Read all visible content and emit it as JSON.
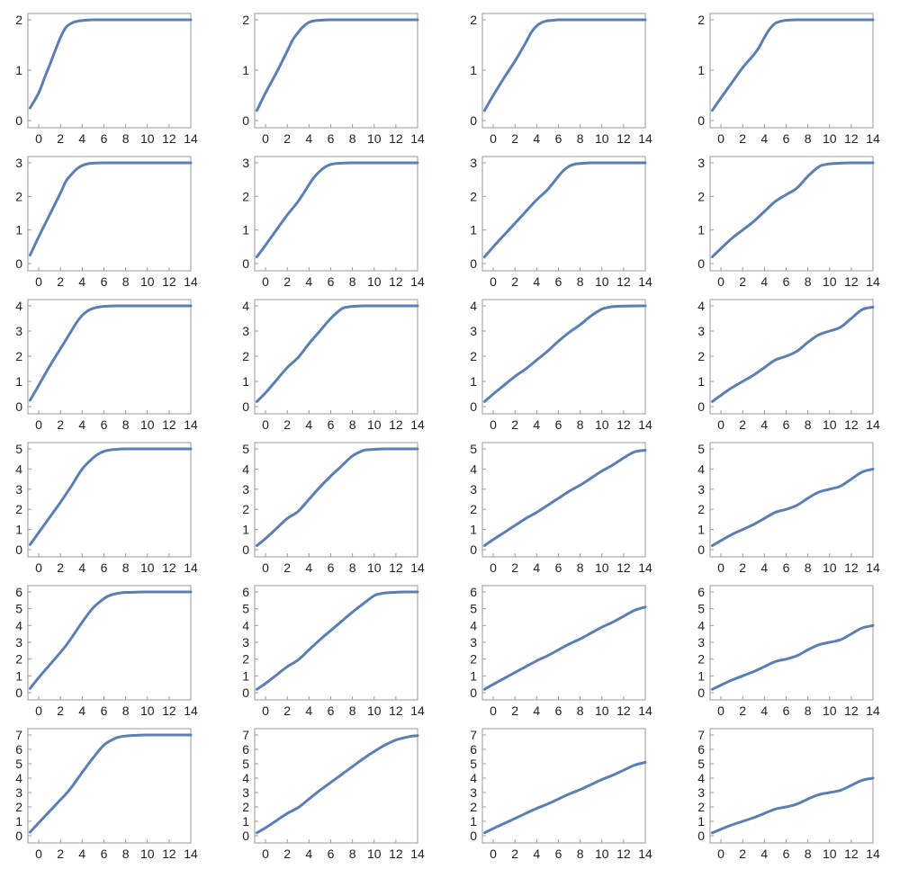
{
  "colors": {
    "series": "#5b7fb2",
    "frame": "#9a9a9a",
    "text": "#222222",
    "background": "#ffffff"
  },
  "chart_data": [
    {
      "type": "line",
      "xlim": [
        -1,
        14
      ],
      "ylim": [
        0,
        2
      ],
      "xticks": [
        0,
        2,
        4,
        6,
        8,
        10,
        12,
        14
      ],
      "yticks": [
        0,
        1,
        2
      ],
      "x": [
        -0.8,
        0,
        0.5,
        1,
        1.5,
        2,
        2.5,
        3,
        3.5,
        4,
        4.5,
        5,
        6,
        8,
        10,
        12,
        14
      ],
      "y": [
        0.25,
        0.55,
        0.83,
        1.1,
        1.38,
        1.65,
        1.85,
        1.93,
        1.97,
        1.985,
        1.995,
        2,
        2,
        2,
        2,
        2,
        2
      ]
    },
    {
      "type": "line",
      "xlim": [
        -1,
        14
      ],
      "ylim": [
        0,
        2
      ],
      "xticks": [
        0,
        2,
        4,
        6,
        8,
        10,
        12,
        14
      ],
      "yticks": [
        0,
        1,
        2
      ],
      "x": [
        -0.8,
        0,
        1,
        2,
        2.5,
        3,
        3.5,
        4,
        4.5,
        5,
        6,
        8,
        10,
        12,
        14
      ],
      "y": [
        0.2,
        0.55,
        0.95,
        1.38,
        1.6,
        1.75,
        1.87,
        1.95,
        1.98,
        1.99,
        2,
        2,
        2,
        2,
        2
      ]
    },
    {
      "type": "line",
      "xlim": [
        -1,
        14
      ],
      "ylim": [
        0,
        2
      ],
      "xticks": [
        0,
        2,
        4,
        6,
        8,
        10,
        12,
        14
      ],
      "yticks": [
        0,
        1,
        2
      ],
      "x": [
        -0.8,
        0,
        1,
        2,
        3,
        3.5,
        4,
        4.5,
        5,
        5.5,
        6,
        7,
        8,
        10,
        12,
        14
      ],
      "y": [
        0.2,
        0.5,
        0.85,
        1.18,
        1.55,
        1.75,
        1.88,
        1.95,
        1.98,
        1.99,
        2,
        2,
        2,
        2,
        2,
        2
      ]
    },
    {
      "type": "line",
      "xlim": [
        -1,
        14
      ],
      "ylim": [
        0,
        2
      ],
      "xticks": [
        0,
        2,
        4,
        6,
        8,
        10,
        12,
        14
      ],
      "yticks": [
        0,
        1,
        2
      ],
      "x": [
        -0.8,
        0,
        1,
        2,
        3,
        3.5,
        4,
        4.5,
        5,
        5.5,
        6,
        7,
        8,
        10,
        12,
        14
      ],
      "y": [
        0.2,
        0.45,
        0.75,
        1.05,
        1.3,
        1.45,
        1.65,
        1.82,
        1.93,
        1.97,
        1.99,
        2,
        2,
        2,
        2,
        2
      ]
    },
    {
      "type": "line",
      "xlim": [
        -1,
        14
      ],
      "ylim": [
        0,
        3
      ],
      "xticks": [
        0,
        2,
        4,
        6,
        8,
        10,
        12,
        14
      ],
      "yticks": [
        0,
        1,
        2,
        3
      ],
      "x": [
        -0.8,
        0,
        1,
        2,
        2.5,
        3,
        3.5,
        4,
        4.5,
        5,
        6,
        8,
        10,
        12,
        14
      ],
      "y": [
        0.25,
        0.8,
        1.45,
        2.1,
        2.45,
        2.65,
        2.82,
        2.92,
        2.97,
        2.99,
        3,
        3,
        3,
        3,
        3
      ]
    },
    {
      "type": "line",
      "xlim": [
        -1,
        14
      ],
      "ylim": [
        0,
        3
      ],
      "xticks": [
        0,
        2,
        4,
        6,
        8,
        10,
        12,
        14
      ],
      "yticks": [
        0,
        1,
        2,
        3
      ],
      "x": [
        -0.8,
        0,
        1,
        2,
        3,
        4,
        4.5,
        5,
        5.5,
        6,
        6.5,
        7,
        8,
        10,
        12,
        14
      ],
      "y": [
        0.2,
        0.55,
        1.0,
        1.45,
        1.85,
        2.35,
        2.58,
        2.75,
        2.88,
        2.95,
        2.98,
        2.99,
        3,
        3,
        3,
        3
      ]
    },
    {
      "type": "line",
      "xlim": [
        -1,
        14
      ],
      "ylim": [
        0,
        3
      ],
      "xticks": [
        0,
        2,
        4,
        6,
        8,
        10,
        12,
        14
      ],
      "yticks": [
        0,
        1,
        2,
        3
      ],
      "x": [
        -0.8,
        0,
        1,
        2,
        3,
        4,
        5,
        6,
        6.5,
        7,
        7.5,
        8,
        9,
        10,
        12,
        14
      ],
      "y": [
        0.2,
        0.5,
        0.85,
        1.2,
        1.55,
        1.9,
        2.2,
        2.6,
        2.78,
        2.9,
        2.96,
        2.98,
        3,
        3,
        3,
        3
      ]
    },
    {
      "type": "line",
      "xlim": [
        -1,
        14
      ],
      "ylim": [
        0,
        3
      ],
      "xticks": [
        0,
        2,
        4,
        6,
        8,
        10,
        12,
        14
      ],
      "yticks": [
        0,
        1,
        2,
        3
      ],
      "x": [
        -0.8,
        0,
        1,
        2,
        3,
        4,
        5,
        6,
        7,
        8,
        9,
        9.5,
        10,
        11,
        12,
        14
      ],
      "y": [
        0.2,
        0.45,
        0.75,
        1.0,
        1.25,
        1.55,
        1.85,
        2.05,
        2.25,
        2.6,
        2.88,
        2.94,
        2.97,
        2.99,
        3,
        3
      ]
    },
    {
      "type": "line",
      "xlim": [
        -1,
        14
      ],
      "ylim": [
        0,
        4
      ],
      "xticks": [
        0,
        2,
        4,
        6,
        8,
        10,
        12,
        14
      ],
      "yticks": [
        0,
        1,
        2,
        3,
        4
      ],
      "x": [
        -0.8,
        0,
        1,
        2,
        3,
        3.5,
        4,
        4.5,
        5,
        5.5,
        6,
        7,
        8,
        10,
        12,
        14
      ],
      "y": [
        0.25,
        0.85,
        1.6,
        2.3,
        3.0,
        3.35,
        3.62,
        3.8,
        3.9,
        3.95,
        3.98,
        4,
        4,
        4,
        4,
        4
      ]
    },
    {
      "type": "line",
      "xlim": [
        -1,
        14
      ],
      "ylim": [
        0,
        4
      ],
      "xticks": [
        0,
        2,
        4,
        6,
        8,
        10,
        12,
        14
      ],
      "yticks": [
        0,
        1,
        2,
        3,
        4
      ],
      "x": [
        -0.8,
        0,
        1,
        2,
        3,
        4,
        5,
        6,
        7,
        7.5,
        8,
        8.5,
        9,
        10,
        12,
        14
      ],
      "y": [
        0.2,
        0.55,
        1.05,
        1.55,
        1.95,
        2.5,
        3.0,
        3.5,
        3.88,
        3.95,
        3.98,
        3.99,
        4,
        4,
        4,
        4
      ]
    },
    {
      "type": "line",
      "xlim": [
        -1,
        14
      ],
      "ylim": [
        0,
        4
      ],
      "xticks": [
        0,
        2,
        4,
        6,
        8,
        10,
        12,
        14
      ],
      "yticks": [
        0,
        1,
        2,
        3,
        4
      ],
      "x": [
        -0.8,
        0,
        1,
        2,
        3,
        4,
        5,
        6,
        7,
        8,
        9,
        10,
        10.5,
        11,
        12,
        14
      ],
      "y": [
        0.2,
        0.5,
        0.85,
        1.2,
        1.5,
        1.85,
        2.2,
        2.6,
        2.95,
        3.25,
        3.6,
        3.87,
        3.93,
        3.97,
        3.99,
        4
      ]
    },
    {
      "type": "line",
      "xlim": [
        -1,
        14
      ],
      "ylim": [
        0,
        4
      ],
      "xticks": [
        0,
        2,
        4,
        6,
        8,
        10,
        12,
        14
      ],
      "yticks": [
        0,
        1,
        2,
        3,
        4
      ],
      "x": [
        -0.8,
        0,
        1,
        2,
        3,
        4,
        5,
        6,
        7,
        8,
        9,
        10,
        11,
        12,
        13,
        14
      ],
      "y": [
        0.2,
        0.45,
        0.75,
        1.0,
        1.25,
        1.55,
        1.85,
        2.0,
        2.2,
        2.55,
        2.85,
        3.0,
        3.15,
        3.5,
        3.85,
        3.95
      ]
    },
    {
      "type": "line",
      "xlim": [
        -1,
        14
      ],
      "ylim": [
        0,
        5
      ],
      "xticks": [
        0,
        2,
        4,
        6,
        8,
        10,
        12,
        14
      ],
      "yticks": [
        0,
        1,
        2,
        3,
        4,
        5
      ],
      "x": [
        -0.8,
        0,
        1,
        2,
        2.5,
        3,
        4,
        5,
        5.5,
        6,
        6.5,
        7,
        8,
        10,
        12,
        14
      ],
      "y": [
        0.25,
        0.85,
        1.6,
        2.35,
        2.75,
        3.15,
        4.0,
        4.55,
        4.75,
        4.88,
        4.94,
        4.97,
        5,
        5,
        5,
        5
      ]
    },
    {
      "type": "line",
      "xlim": [
        -1,
        14
      ],
      "ylim": [
        0,
        5
      ],
      "xticks": [
        0,
        2,
        4,
        6,
        8,
        10,
        12,
        14
      ],
      "yticks": [
        0,
        1,
        2,
        3,
        4,
        5
      ],
      "x": [
        -0.8,
        0,
        1,
        2,
        3,
        4,
        5,
        6,
        7,
        8,
        9,
        9.5,
        10,
        11,
        12,
        14
      ],
      "y": [
        0.2,
        0.55,
        1.05,
        1.55,
        1.9,
        2.5,
        3.1,
        3.65,
        4.15,
        4.65,
        4.92,
        4.96,
        4.98,
        5,
        5,
        5
      ]
    },
    {
      "type": "line",
      "xlim": [
        -1,
        14
      ],
      "ylim": [
        0,
        5
      ],
      "xticks": [
        0,
        2,
        4,
        6,
        8,
        10,
        12,
        14
      ],
      "yticks": [
        0,
        1,
        2,
        3,
        4,
        5
      ],
      "x": [
        -0.8,
        0,
        1,
        2,
        3,
        4,
        5,
        6,
        7,
        8,
        9,
        10,
        11,
        12,
        13,
        14
      ],
      "y": [
        0.2,
        0.5,
        0.85,
        1.2,
        1.55,
        1.85,
        2.2,
        2.55,
        2.9,
        3.2,
        3.55,
        3.9,
        4.2,
        4.55,
        4.85,
        4.93
      ]
    },
    {
      "type": "line",
      "xlim": [
        -1,
        14
      ],
      "ylim": [
        0,
        5
      ],
      "xticks": [
        0,
        2,
        4,
        6,
        8,
        10,
        12,
        14
      ],
      "yticks": [
        0,
        1,
        2,
        3,
        4,
        5
      ],
      "x": [
        -0.8,
        0,
        1,
        2,
        3,
        4,
        5,
        6,
        7,
        8,
        9,
        10,
        11,
        12,
        13,
        14
      ],
      "y": [
        0.2,
        0.45,
        0.75,
        1.0,
        1.25,
        1.55,
        1.85,
        2.0,
        2.2,
        2.55,
        2.85,
        3.0,
        3.15,
        3.5,
        3.85,
        4.0
      ]
    },
    {
      "type": "line",
      "xlim": [
        -1,
        14
      ],
      "ylim": [
        0,
        6
      ],
      "xticks": [
        0,
        2,
        4,
        6,
        8,
        10,
        12,
        14
      ],
      "yticks": [
        0,
        1,
        2,
        3,
        4,
        5,
        6
      ],
      "x": [
        -0.8,
        0,
        1,
        2,
        2.5,
        3,
        4,
        5,
        6,
        6.5,
        7,
        7.5,
        8,
        9,
        10,
        12,
        14
      ],
      "y": [
        0.25,
        0.9,
        1.65,
        2.4,
        2.8,
        3.25,
        4.2,
        5.05,
        5.6,
        5.78,
        5.88,
        5.94,
        5.97,
        5.99,
        6,
        6,
        6
      ]
    },
    {
      "type": "line",
      "xlim": [
        -1,
        14
      ],
      "ylim": [
        0,
        6
      ],
      "xticks": [
        0,
        2,
        4,
        6,
        8,
        10,
        12,
        14
      ],
      "yticks": [
        0,
        1,
        2,
        3,
        4,
        5,
        6
      ],
      "x": [
        -0.8,
        0,
        1,
        2,
        3,
        4,
        5,
        6,
        7,
        8,
        9,
        10,
        10.5,
        11,
        12,
        13,
        14
      ],
      "y": [
        0.2,
        0.55,
        1.05,
        1.55,
        1.95,
        2.55,
        3.15,
        3.7,
        4.25,
        4.8,
        5.3,
        5.78,
        5.88,
        5.94,
        5.98,
        6,
        6
      ]
    },
    {
      "type": "line",
      "xlim": [
        -1,
        14
      ],
      "ylim": [
        0,
        6
      ],
      "xticks": [
        0,
        2,
        4,
        6,
        8,
        10,
        12,
        14
      ],
      "yticks": [
        0,
        1,
        2,
        3,
        4,
        5,
        6
      ],
      "x": [
        -0.8,
        0,
        1,
        2,
        3,
        4,
        5,
        6,
        7,
        8,
        9,
        10,
        11,
        12,
        13,
        14
      ],
      "y": [
        0.2,
        0.5,
        0.85,
        1.2,
        1.55,
        1.9,
        2.2,
        2.55,
        2.9,
        3.2,
        3.55,
        3.9,
        4.2,
        4.55,
        4.9,
        5.1
      ]
    },
    {
      "type": "line",
      "xlim": [
        -1,
        14
      ],
      "ylim": [
        0,
        6
      ],
      "xticks": [
        0,
        2,
        4,
        6,
        8,
        10,
        12,
        14
      ],
      "yticks": [
        0,
        1,
        2,
        3,
        4,
        5,
        6
      ],
      "x": [
        -0.8,
        0,
        1,
        2,
        3,
        4,
        5,
        6,
        7,
        8,
        9,
        10,
        11,
        12,
        13,
        14
      ],
      "y": [
        0.2,
        0.45,
        0.75,
        1.0,
        1.25,
        1.55,
        1.85,
        2.0,
        2.2,
        2.55,
        2.85,
        3.0,
        3.15,
        3.5,
        3.85,
        4.0
      ]
    },
    {
      "type": "line",
      "xlim": [
        -1,
        14
      ],
      "ylim": [
        0,
        7
      ],
      "xticks": [
        0,
        2,
        4,
        6,
        8,
        10,
        12,
        14
      ],
      "yticks": [
        0,
        1,
        2,
        3,
        4,
        5,
        6,
        7
      ],
      "x": [
        -0.8,
        0,
        1,
        2,
        2.5,
        3,
        4,
        5,
        6,
        7,
        7.5,
        8,
        8.5,
        9,
        10,
        12,
        14
      ],
      "y": [
        0.25,
        0.9,
        1.7,
        2.5,
        2.9,
        3.35,
        4.4,
        5.4,
        6.3,
        6.75,
        6.87,
        6.93,
        6.96,
        6.98,
        7,
        7,
        7
      ]
    },
    {
      "type": "line",
      "xlim": [
        -1,
        14
      ],
      "ylim": [
        0,
        7
      ],
      "xticks": [
        0,
        2,
        4,
        6,
        8,
        10,
        12,
        14
      ],
      "yticks": [
        0,
        1,
        2,
        3,
        4,
        5,
        6,
        7
      ],
      "x": [
        -0.8,
        0,
        1,
        2,
        3,
        4,
        5,
        6,
        7,
        8,
        9,
        10,
        11,
        12,
        13,
        13.5,
        14
      ],
      "y": [
        0.2,
        0.55,
        1.05,
        1.55,
        1.95,
        2.55,
        3.15,
        3.7,
        4.25,
        4.8,
        5.35,
        5.85,
        6.3,
        6.65,
        6.85,
        6.92,
        6.95
      ]
    },
    {
      "type": "line",
      "xlim": [
        -1,
        14
      ],
      "ylim": [
        0,
        7
      ],
      "xticks": [
        0,
        2,
        4,
        6,
        8,
        10,
        12,
        14
      ],
      "yticks": [
        0,
        1,
        2,
        3,
        4,
        5,
        6,
        7
      ],
      "x": [
        -0.8,
        0,
        1,
        2,
        3,
        4,
        5,
        6,
        7,
        8,
        9,
        10,
        11,
        12,
        13,
        14
      ],
      "y": [
        0.2,
        0.5,
        0.85,
        1.2,
        1.55,
        1.9,
        2.2,
        2.55,
        2.9,
        3.2,
        3.55,
        3.9,
        4.2,
        4.55,
        4.9,
        5.1
      ]
    },
    {
      "type": "line",
      "xlim": [
        -1,
        14
      ],
      "ylim": [
        0,
        7
      ],
      "xticks": [
        0,
        2,
        4,
        6,
        8,
        10,
        12,
        14
      ],
      "yticks": [
        0,
        1,
        2,
        3,
        4,
        5,
        6,
        7
      ],
      "x": [
        -0.8,
        0,
        1,
        2,
        3,
        4,
        5,
        6,
        7,
        8,
        9,
        10,
        11,
        12,
        13,
        14
      ],
      "y": [
        0.2,
        0.45,
        0.75,
        1.0,
        1.25,
        1.55,
        1.85,
        2.0,
        2.2,
        2.55,
        2.85,
        3.0,
        3.15,
        3.5,
        3.85,
        4.0
      ]
    }
  ]
}
